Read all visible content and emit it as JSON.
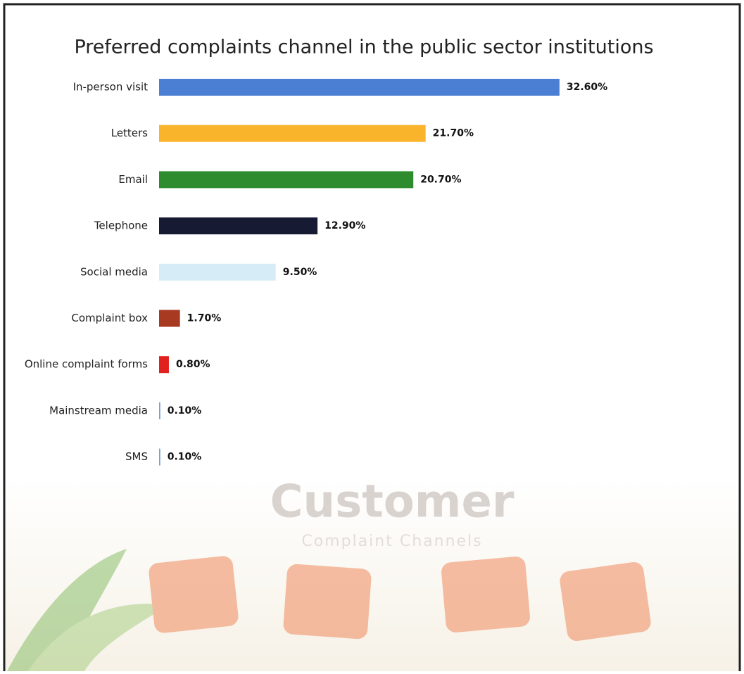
{
  "chart_data": {
    "type": "hbar",
    "title": "Preferred complaints channel in the public sector institutions",
    "categories": [
      "In-person visit",
      "Letters",
      "Email",
      "Telephone",
      "Social media",
      "Complaint box",
      "Online complaint forms",
      "Mainstream media",
      "SMS"
    ],
    "values": [
      32.6,
      21.7,
      20.7,
      12.9,
      9.5,
      1.7,
      0.8,
      0.1,
      0.1
    ],
    "value_labels": [
      "32.60%",
      "21.70%",
      "20.70%",
      "12.90%",
      "9.50%",
      "1.70%",
      "0.80%",
      "0.10%",
      "0.10%"
    ],
    "colors": [
      "#4a7fd4",
      "#f9b42b",
      "#2e8b2e",
      "#161a33",
      "#d6ecf7",
      "#a83a22",
      "#e0211d",
      "#7aa0cf",
      "#7aa0cf"
    ],
    "annotations": [
      "Customer",
      "Complaint Channels"
    ]
  }
}
